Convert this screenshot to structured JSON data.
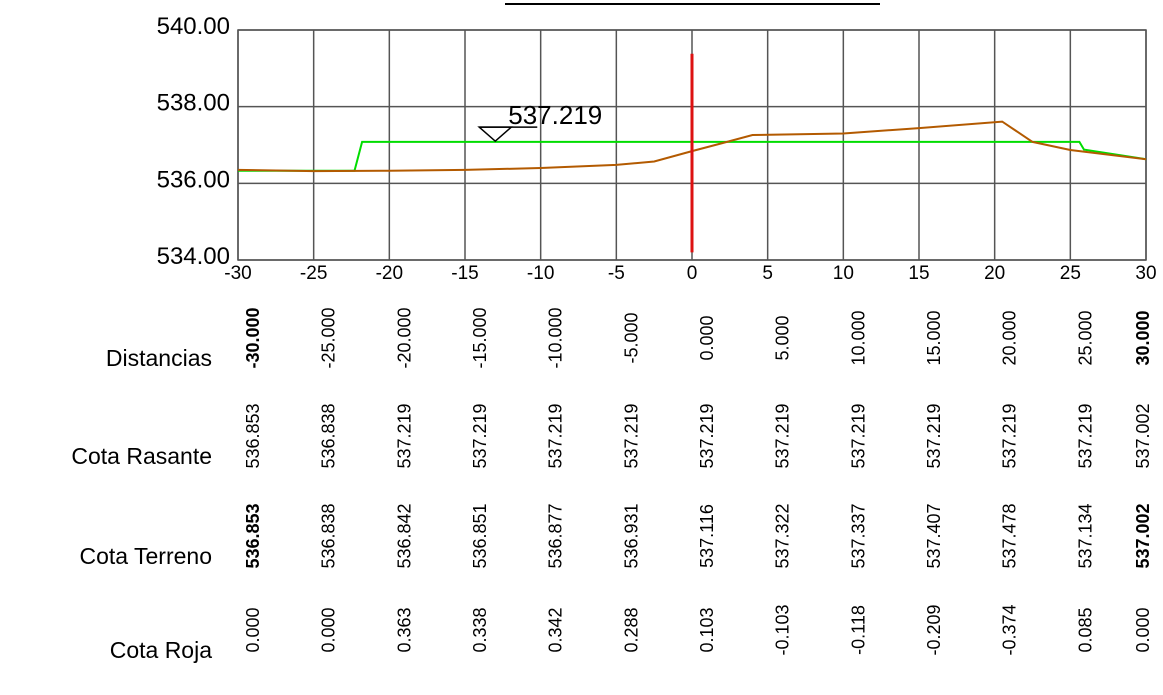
{
  "chart_data": {
    "type": "line",
    "title": "",
    "xlabel": "",
    "ylabel": "",
    "xlim": [
      -30,
      30
    ],
    "ylim": [
      534,
      540
    ],
    "grid": true,
    "x_ticks": [
      -30,
      -25,
      -20,
      -15,
      -10,
      -5,
      0,
      5,
      10,
      15,
      20,
      25,
      30
    ],
    "x_tick_labels": [
      "-30",
      "-25",
      "-20",
      "-15",
      "-10",
      "-5",
      "0",
      "5",
      "10",
      "15",
      "20",
      "25",
      "30"
    ],
    "y_ticks": [
      534,
      536,
      538,
      540
    ],
    "y_tick_labels": [
      "534.00",
      "536.00",
      "538.00",
      "540.00"
    ],
    "series": [
      {
        "color": "#00dd00",
        "points": [
          [
            -30,
            536.33
          ],
          [
            -22.3,
            536.33
          ],
          [
            -21.8,
            537.08
          ],
          [
            25.6,
            537.08
          ],
          [
            25.9,
            536.88
          ],
          [
            30,
            536.63
          ]
        ]
      },
      {
        "color": "#b35a00",
        "points": [
          [
            -30,
            536.35
          ],
          [
            -25,
            536.32
          ],
          [
            -20,
            536.33
          ],
          [
            -15,
            536.35
          ],
          [
            -10,
            536.4
          ],
          [
            -5,
            536.48
          ],
          [
            -2.5,
            536.57
          ],
          [
            0,
            536.84
          ],
          [
            2,
            537.05
          ],
          [
            4,
            537.26
          ],
          [
            10,
            537.3
          ],
          [
            15,
            537.44
          ],
          [
            20.5,
            537.61
          ],
          [
            22.5,
            537.08
          ],
          [
            25,
            536.87
          ],
          [
            30,
            536.63
          ]
        ]
      }
    ],
    "vertical_marker": {
      "x": 0,
      "y_from": 534.2,
      "y_to": 539.38,
      "color": "#dd1111"
    },
    "annotation": {
      "text": "537.219",
      "x": -13,
      "y": 537.1
    }
  },
  "table": {
    "rows": [
      {
        "label": "Distancias",
        "values": [
          "-30.000",
          "-25.000",
          "-20.000",
          "-15.000",
          "-10.000",
          "-5.000",
          "0.000",
          "5.000",
          "10.000",
          "15.000",
          "20.000",
          "25.000",
          "30.000"
        ],
        "bold_edges": true
      },
      {
        "label": "Cota Rasante",
        "values": [
          "536.853",
          "536.838",
          "537.219",
          "537.219",
          "537.219",
          "537.219",
          "537.219",
          "537.219",
          "537.219",
          "537.219",
          "537.219",
          "537.219",
          "537.002"
        ],
        "bold_edges": false
      },
      {
        "label": "Cota Terreno",
        "values": [
          "536.853",
          "536.838",
          "536.842",
          "536.851",
          "536.877",
          "536.931",
          "537.116",
          "537.322",
          "537.337",
          "537.407",
          "537.478",
          "537.134",
          "537.002"
        ],
        "bold_edges": true
      },
      {
        "label": "Cota Roja",
        "values": [
          "0.000",
          "0.000",
          "0.363",
          "0.338",
          "0.342",
          "0.288",
          "0.103",
          "-0.103",
          "-0.118",
          "-0.209",
          "-0.374",
          "0.085",
          "0.000"
        ],
        "bold_edges": false
      }
    ]
  }
}
